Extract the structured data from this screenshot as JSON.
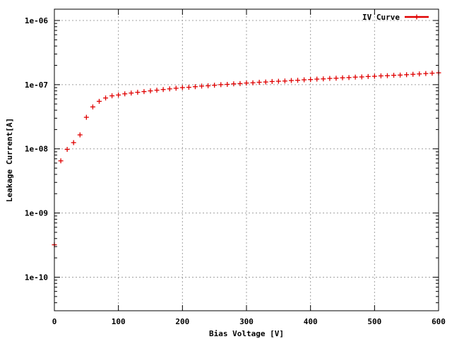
{
  "chart_data": {
    "type": "scatter",
    "title": "",
    "xlabel": "Bias Voltage [V]",
    "ylabel": "Leakage Current[A]",
    "xlim": [
      0,
      600
    ],
    "ylim": [
      3e-11,
      1.5e-06
    ],
    "yscale": "log",
    "grid": true,
    "legend_position": "top-right",
    "x_ticks": [
      {
        "value": 0,
        "label": "0"
      },
      {
        "value": 100,
        "label": "100"
      },
      {
        "value": 200,
        "label": "200"
      },
      {
        "value": 300,
        "label": "300"
      },
      {
        "value": 400,
        "label": "400"
      },
      {
        "value": 500,
        "label": "500"
      },
      {
        "value": 600,
        "label": "600"
      }
    ],
    "y_ticks": [
      {
        "value": 1e-10,
        "label": "1e-10"
      },
      {
        "value": 1e-09,
        "label": "1e-09"
      },
      {
        "value": 1e-08,
        "label": "1e-08"
      },
      {
        "value": 1e-07,
        "label": "1e-07"
      },
      {
        "value": 1e-06,
        "label": "1e-06"
      }
    ],
    "series": [
      {
        "name": "IV Curve",
        "color": "#e00000",
        "marker": "plus",
        "x": [
          0,
          10,
          20,
          30,
          40,
          50,
          60,
          70,
          80,
          90,
          100,
          110,
          120,
          130,
          140,
          150,
          160,
          170,
          180,
          190,
          200,
          210,
          220,
          230,
          240,
          250,
          260,
          270,
          280,
          290,
          300,
          310,
          320,
          330,
          340,
          350,
          360,
          370,
          380,
          390,
          400,
          410,
          420,
          430,
          440,
          450,
          460,
          470,
          480,
          490,
          500,
          510,
          520,
          530,
          540,
          550,
          560,
          570,
          580,
          590,
          600
        ],
        "y": [
          3.2e-10,
          6.5e-09,
          9.8e-09,
          1.25e-08,
          1.65e-08,
          3.1e-08,
          4.5e-08,
          5.5e-08,
          6.2e-08,
          6.7e-08,
          6.9e-08,
          7.2e-08,
          7.4e-08,
          7.6e-08,
          7.8e-08,
          8e-08,
          8.2e-08,
          8.4e-08,
          8.6e-08,
          8.8e-08,
          9e-08,
          9.1e-08,
          9.3e-08,
          9.5e-08,
          9.6e-08,
          9.8e-08,
          1e-07,
          1.01e-07,
          1.03e-07,
          1.04e-07,
          1.06e-07,
          1.07e-07,
          1.09e-07,
          1.1e-07,
          1.12e-07,
          1.13e-07,
          1.14e-07,
          1.16e-07,
          1.17e-07,
          1.19e-07,
          1.2e-07,
          1.22e-07,
          1.23e-07,
          1.25e-07,
          1.26e-07,
          1.28e-07,
          1.29e-07,
          1.31e-07,
          1.32e-07,
          1.34e-07,
          1.35e-07,
          1.37e-07,
          1.38e-07,
          1.4e-07,
          1.41e-07,
          1.43e-07,
          1.45e-07,
          1.47e-07,
          1.49e-07,
          1.51e-07,
          1.53e-07
        ]
      }
    ]
  }
}
